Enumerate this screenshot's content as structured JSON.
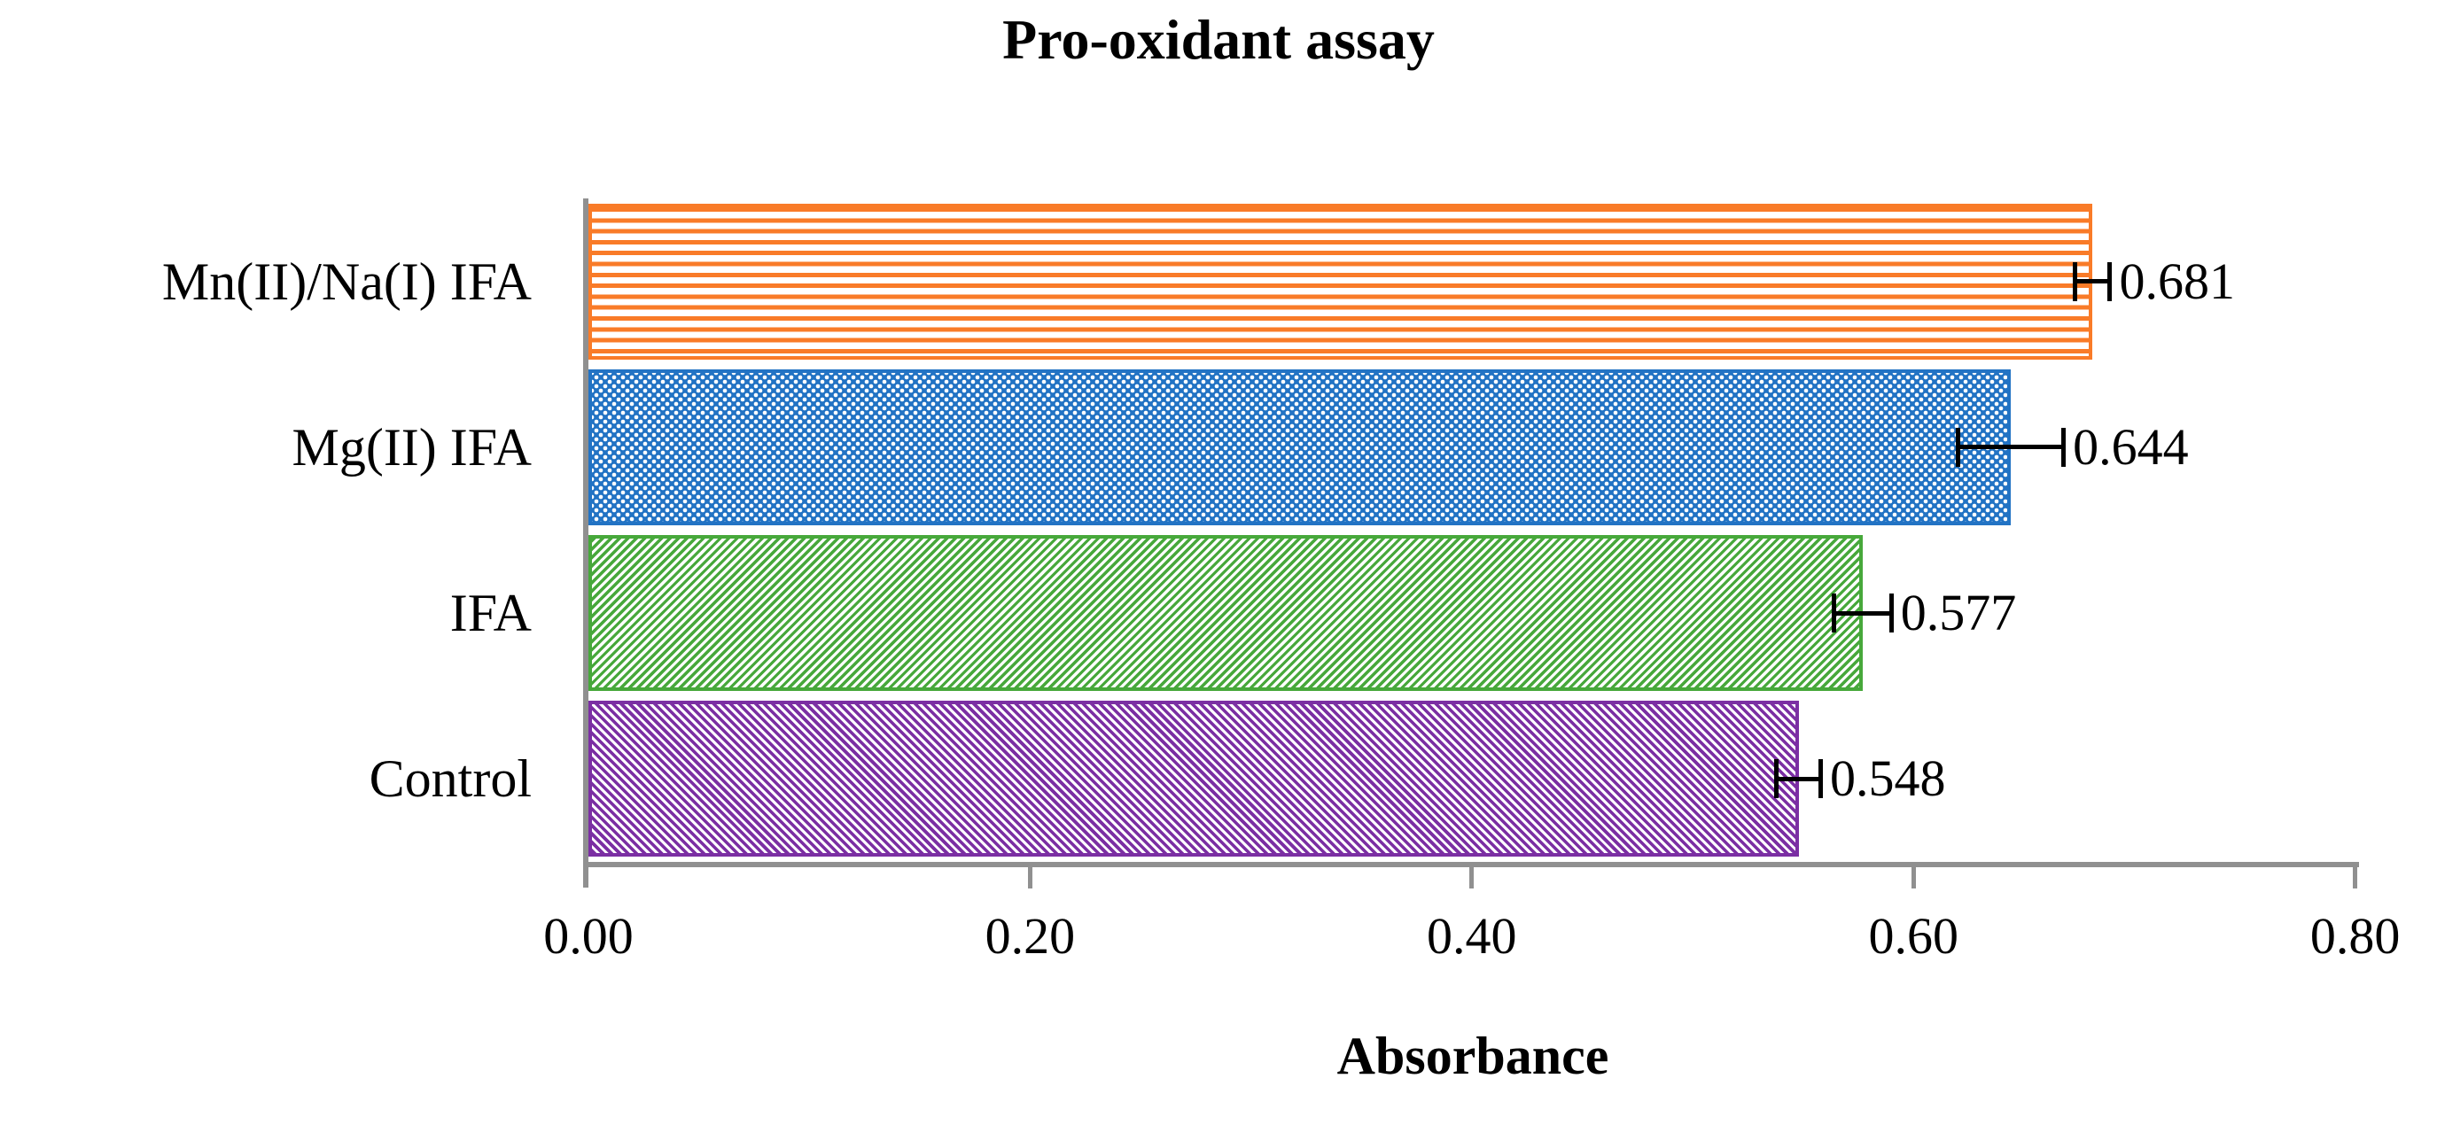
{
  "chart_data": {
    "type": "bar",
    "orientation": "horizontal",
    "title": "Pro-oxidant assay",
    "xlabel": "Absorbance",
    "xlim": [
      0.0,
      0.8
    ],
    "grid": false,
    "legend": "none",
    "axis_color": "#909090",
    "error_bar_color": "#000000",
    "background_color": "#ffffff",
    "xticks": {
      "values": [
        0.0,
        0.2,
        0.4,
        0.6,
        0.8
      ],
      "labels": [
        "0.00",
        "0.20",
        "0.40",
        "0.60",
        "0.80"
      ]
    },
    "categories": [
      "Mn(II)/Na(I) IFA",
      "Mg(II) IFA",
      "IFA",
      "Control"
    ],
    "values": [
      0.681,
      0.644,
      0.577,
      0.548
    ],
    "bars": [
      {
        "category": "Mn(II)/Na(I) IFA",
        "value": 0.681,
        "label": "0.681",
        "error": 0.009,
        "color": "#F97B28",
        "pattern": "stripes-horizontal"
      },
      {
        "category": "Mg(II) IFA",
        "value": 0.644,
        "label": "0.644",
        "error": 0.025,
        "color": "#2273C4",
        "pattern": "checker"
      },
      {
        "category": "IFA",
        "value": 0.577,
        "label": "0.577",
        "error": 0.014,
        "color": "#47A83B",
        "pattern": "diagonal-up"
      },
      {
        "category": "Control",
        "value": 0.548,
        "label": "0.548",
        "error": 0.011,
        "color": "#7B2FA3",
        "pattern": "diagonal-down"
      }
    ]
  }
}
